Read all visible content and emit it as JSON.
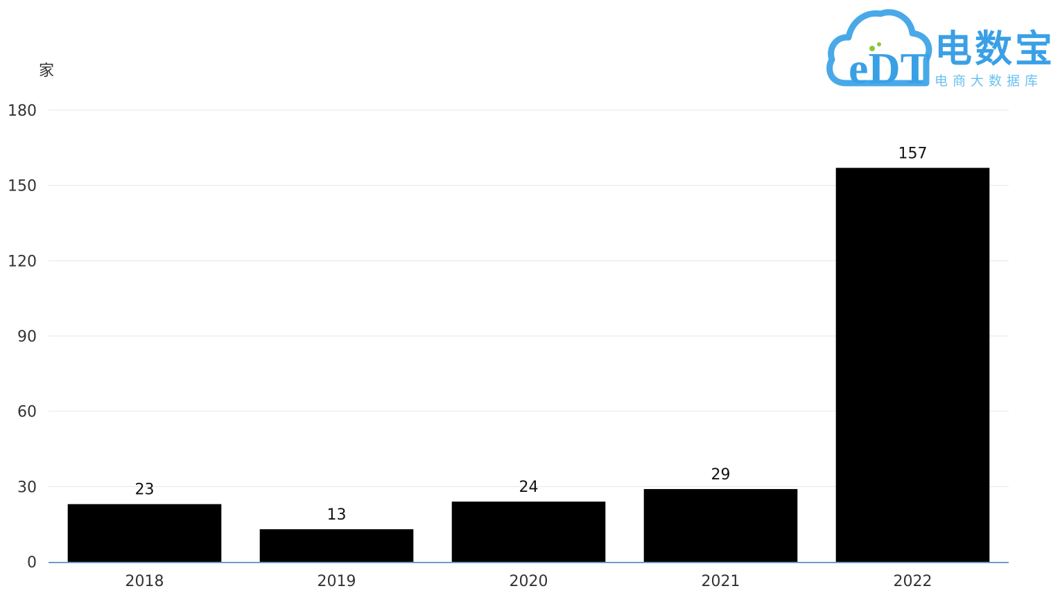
{
  "logo": {
    "brand": "eDT",
    "title": "电数宝",
    "subtitle": "电商大数据库"
  },
  "colors": {
    "bar": "#000000",
    "grid": "#e6e6e6",
    "axis_line": "#6e9cc6",
    "label": "#333333",
    "logo_blue": "#3aa0e6",
    "logo_green": "#8cc63f"
  },
  "chart_data": {
    "type": "bar",
    "title": "",
    "xlabel": "",
    "ylabel": "家",
    "categories": [
      "2018",
      "2019",
      "2020",
      "2021",
      "2022"
    ],
    "values": [
      23,
      13,
      24,
      29,
      157
    ],
    "ylim": [
      0,
      180
    ],
    "yticks": [
      0,
      30,
      60,
      90,
      120,
      150,
      180
    ],
    "grid": true,
    "data_labels": true,
    "legend": "none"
  }
}
